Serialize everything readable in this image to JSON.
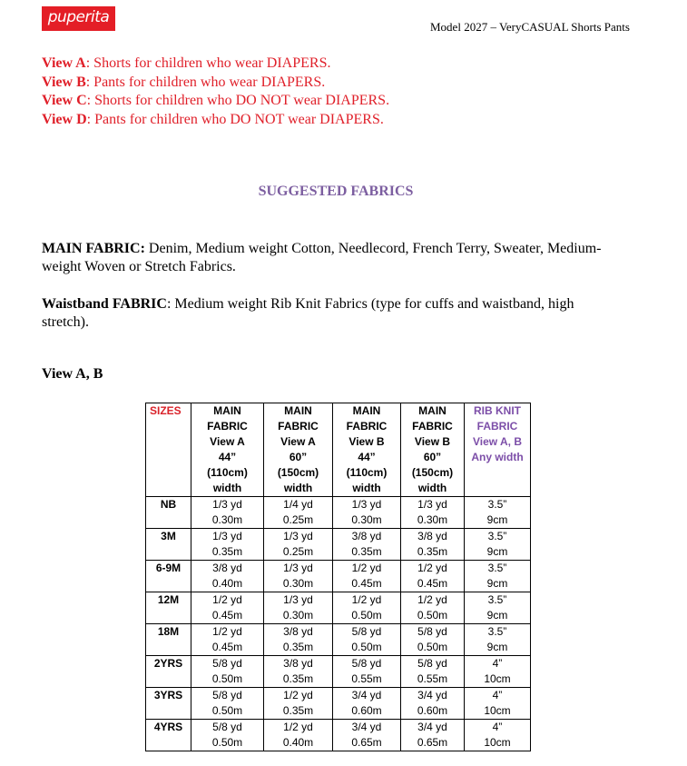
{
  "logo": "puperita",
  "header": "Model 2027 – VeryCASUAL Shorts Pants",
  "views": [
    {
      "label": "View A",
      "text": ": Shorts for children who wear DIAPERS."
    },
    {
      "label": "View B",
      "text": ": Pants for children who wear DIAPERS."
    },
    {
      "label": "View C",
      "text": ": Shorts for children who DO NOT wear DIAPERS."
    },
    {
      "label": "View D",
      "text": ": Pants for children who DO NOT wear DIAPERS."
    }
  ],
  "suggested_title": "SUGGESTED FABRICS",
  "main_fabric": {
    "label": "MAIN FABRIC:",
    "text": " Denim, Medium weight Cotton, Needlecord, French Terry, Sweater, Medium-weight Woven or Stretch Fabrics."
  },
  "waistband_fabric": {
    "label": "Waistband FABRIC",
    "text": ": Medium weight Rib Knit Fabrics (type for cuffs and waistband, high stretch)."
  },
  "table_title": "View A, B",
  "table": {
    "headers": [
      [
        "SIZES"
      ],
      [
        "MAIN",
        "FABRIC",
        "View A",
        "44”",
        "(110cm)",
        "width"
      ],
      [
        "MAIN",
        "FABRIC",
        "View A",
        "60”",
        "(150cm)",
        "width"
      ],
      [
        "MAIN",
        "FABRIC",
        "View B",
        "44”",
        "(110cm)",
        "width"
      ],
      [
        "MAIN",
        "FABRIC",
        "View B",
        "60”",
        "(150cm)",
        "width"
      ],
      [
        "RIB KNIT",
        "FABRIC",
        "View A, B",
        "Any width"
      ]
    ],
    "rows": [
      [
        "NB",
        [
          "1/3 yd",
          "0.30m"
        ],
        [
          "1/4 yd",
          "0.25m"
        ],
        [
          "1/3 yd",
          "0.30m"
        ],
        [
          "1/3 yd",
          "0.30m"
        ],
        [
          "3.5”",
          "9cm"
        ]
      ],
      [
        "3M",
        [
          "1/3 yd",
          "0.35m"
        ],
        [
          "1/3 yd",
          "0.25m"
        ],
        [
          "3/8 yd",
          "0.35m"
        ],
        [
          "3/8 yd",
          "0.35m"
        ],
        [
          "3.5”",
          "9cm"
        ]
      ],
      [
        "6-9M",
        [
          "3/8 yd",
          "0.40m"
        ],
        [
          "1/3 yd",
          "0.30m"
        ],
        [
          "1/2 yd",
          "0.45m"
        ],
        [
          "1/2 yd",
          "0.45m"
        ],
        [
          "3.5”",
          "9cm"
        ]
      ],
      [
        "12M",
        [
          "1/2 yd",
          "0.45m"
        ],
        [
          "1/3 yd",
          "0.30m"
        ],
        [
          "1/2 yd",
          "0.50m"
        ],
        [
          "1/2 yd",
          "0.50m"
        ],
        [
          "3.5”",
          "9cm"
        ]
      ],
      [
        "18M",
        [
          "1/2 yd",
          "0.45m"
        ],
        [
          "3/8 yd",
          "0.35m"
        ],
        [
          "5/8 yd",
          "0.50m"
        ],
        [
          "5/8 yd",
          "0.50m"
        ],
        [
          "3.5”",
          "9cm"
        ]
      ],
      [
        "2YRS",
        [
          "5/8 yd",
          "0.50m"
        ],
        [
          "3/8 yd",
          "0.35m"
        ],
        [
          "5/8 yd",
          "0.55m"
        ],
        [
          "5/8 yd",
          "0.55m"
        ],
        [
          "4”",
          "10cm"
        ]
      ],
      [
        "3YRS",
        [
          "5/8 yd",
          "0.50m"
        ],
        [
          "1/2 yd",
          "0.35m"
        ],
        [
          "3/4 yd",
          "0.60m"
        ],
        [
          "3/4 yd",
          "0.60m"
        ],
        [
          "4”",
          "10cm"
        ]
      ],
      [
        "4YRS",
        [
          "5/8 yd",
          "0.50m"
        ],
        [
          "1/2 yd",
          "0.40m"
        ],
        [
          "3/4 yd",
          "0.65m"
        ],
        [
          "3/4 yd",
          "0.65m"
        ],
        [
          "4”",
          "10cm"
        ]
      ]
    ]
  }
}
